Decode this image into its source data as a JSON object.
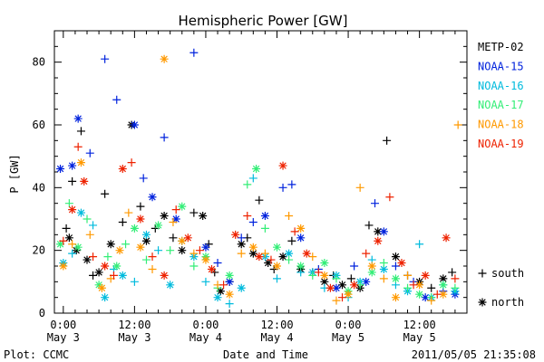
{
  "chart_data": {
    "type": "scatter",
    "title": "Hemispheric Power [GW]",
    "xlabel": "Date and Time",
    "ylabel": "P [GW]",
    "x_unit": "hours from 2011-05-03 00:00 UT",
    "xlim": [
      -1.5,
      68
    ],
    "ylim": [
      0,
      90
    ],
    "x_ticks": [
      {
        "pos": 0,
        "lines": [
          "0:00",
          "May 3"
        ]
      },
      {
        "pos": 12,
        "lines": [
          "12:00",
          "May 3"
        ]
      },
      {
        "pos": 24,
        "lines": [
          "0:00",
          "May 4"
        ]
      },
      {
        "pos": 36,
        "lines": [
          "12:00",
          "May 4"
        ]
      },
      {
        "pos": 48,
        "lines": [
          "0:00",
          "May 5"
        ]
      },
      {
        "pos": 60,
        "lines": [
          "12:00",
          "May 5"
        ]
      }
    ],
    "y_ticks": [
      0,
      20,
      40,
      60,
      80
    ],
    "marker_legend": [
      {
        "symbol": "+",
        "label": "south"
      },
      {
        "symbol": "*",
        "label": "north"
      }
    ],
    "footer_left": "Plot: CCMC",
    "footer_right": "2011/05/05 21:35:08",
    "series": [
      {
        "name": "METP-02",
        "color": "#000000",
        "points": [
          [
            0.5,
            "+",
            27
          ],
          [
            1,
            "*",
            24
          ],
          [
            1.5,
            "+",
            42
          ],
          [
            2.2,
            "*",
            20
          ],
          [
            3,
            "+",
            58
          ],
          [
            4,
            "*",
            17
          ],
          [
            5,
            "+",
            12
          ],
          [
            6,
            "*",
            13
          ],
          [
            7,
            "+",
            38
          ],
          [
            8,
            "*",
            22
          ],
          [
            10,
            "+",
            29
          ],
          [
            11.5,
            "*",
            60
          ],
          [
            13,
            "+",
            34
          ],
          [
            14,
            "*",
            23
          ],
          [
            15.5,
            "+",
            27
          ],
          [
            17,
            "*",
            31
          ],
          [
            18.5,
            "+",
            24
          ],
          [
            20,
            "*",
            20
          ],
          [
            22,
            "+",
            32
          ],
          [
            23.5,
            "*",
            31
          ],
          [
            24.5,
            "+",
            22
          ],
          [
            25.5,
            "+",
            13
          ],
          [
            26.5,
            "*",
            7
          ],
          [
            28,
            "+",
            10
          ],
          [
            30,
            "*",
            22
          ],
          [
            31,
            "+",
            24
          ],
          [
            32,
            "*",
            19
          ],
          [
            33,
            "+",
            36
          ],
          [
            34.5,
            "*",
            16
          ],
          [
            35.5,
            "+",
            14
          ],
          [
            37,
            "*",
            18
          ],
          [
            38.5,
            "+",
            23
          ],
          [
            40,
            "*",
            14
          ],
          [
            42,
            "+",
            13
          ],
          [
            44,
            "*",
            10
          ],
          [
            45.5,
            "+",
            12
          ],
          [
            47,
            "*",
            9
          ],
          [
            48.5,
            "+",
            11
          ],
          [
            50,
            "*",
            8
          ],
          [
            51.5,
            "+",
            28
          ],
          [
            53,
            "*",
            26
          ],
          [
            54.5,
            "+",
            55
          ],
          [
            56,
            "*",
            18
          ],
          [
            58,
            "+",
            12
          ],
          [
            60,
            "*",
            10
          ],
          [
            62,
            "+",
            8
          ],
          [
            64,
            "*",
            11
          ],
          [
            65.5,
            "+",
            13
          ]
        ]
      },
      {
        "name": "NOAA-15",
        "color": "#0022dd",
        "points": [
          [
            -0.5,
            "*",
            46
          ],
          [
            1.5,
            "*",
            47
          ],
          [
            2.5,
            "*",
            62
          ],
          [
            4.5,
            "+",
            51
          ],
          [
            7,
            "+",
            81
          ],
          [
            9,
            "+",
            68
          ],
          [
            12,
            "*",
            60
          ],
          [
            13.5,
            "+",
            43
          ],
          [
            15,
            "*",
            37
          ],
          [
            17,
            "+",
            56
          ],
          [
            19,
            "*",
            30
          ],
          [
            22,
            "+",
            83
          ],
          [
            24,
            "*",
            21
          ],
          [
            26,
            "+",
            16
          ],
          [
            28,
            "*",
            10
          ],
          [
            30,
            "+",
            24
          ],
          [
            32,
            "+",
            29
          ],
          [
            34,
            "*",
            31
          ],
          [
            37,
            "+",
            40
          ],
          [
            38.5,
            "+",
            41
          ],
          [
            40,
            "*",
            24
          ],
          [
            43,
            "+",
            14
          ],
          [
            46,
            "*",
            8
          ],
          [
            49,
            "+",
            15
          ],
          [
            51,
            "*",
            10
          ],
          [
            52.5,
            "+",
            35
          ],
          [
            54,
            "*",
            26
          ],
          [
            56,
            "+",
            15
          ],
          [
            59,
            "+",
            10
          ],
          [
            61,
            "*",
            5
          ],
          [
            64,
            "+",
            7
          ],
          [
            66,
            "*",
            6
          ]
        ]
      },
      {
        "name": "NOAA-16",
        "color": "#00bbdd",
        "points": [
          [
            0,
            "*",
            16
          ],
          [
            1.5,
            "+",
            19
          ],
          [
            3,
            "*",
            32
          ],
          [
            5,
            "+",
            28
          ],
          [
            7,
            "*",
            5
          ],
          [
            8.5,
            "+",
            14
          ],
          [
            10,
            "*",
            12
          ],
          [
            12,
            "+",
            10
          ],
          [
            14,
            "*",
            25
          ],
          [
            16,
            "+",
            20
          ],
          [
            18,
            "*",
            9
          ],
          [
            20,
            "+",
            23
          ],
          [
            22,
            "*",
            18
          ],
          [
            24,
            "+",
            10
          ],
          [
            26,
            "*",
            5
          ],
          [
            28,
            "+",
            3
          ],
          [
            30,
            "*",
            8
          ],
          [
            32,
            "+",
            43
          ],
          [
            34,
            "*",
            18
          ],
          [
            36,
            "+",
            11
          ],
          [
            38,
            "*",
            19
          ],
          [
            40,
            "+",
            13
          ],
          [
            42,
            "*",
            13
          ],
          [
            44,
            "+",
            8
          ],
          [
            46,
            "*",
            12
          ],
          [
            48,
            "+",
            5
          ],
          [
            50,
            "*",
            10
          ],
          [
            52,
            "+",
            17
          ],
          [
            54,
            "*",
            14
          ],
          [
            56,
            "+",
            9
          ],
          [
            58,
            "*",
            7
          ],
          [
            60,
            "+",
            22
          ],
          [
            62,
            "*",
            5
          ],
          [
            64,
            "+",
            9
          ],
          [
            66,
            "*",
            7
          ]
        ]
      },
      {
        "name": "NOAA-17",
        "color": "#33ee77",
        "points": [
          [
            -0.5,
            "*",
            22
          ],
          [
            1,
            "+",
            35
          ],
          [
            2.5,
            "*",
            21
          ],
          [
            4,
            "+",
            30
          ],
          [
            6,
            "*",
            9
          ],
          [
            7.5,
            "+",
            18
          ],
          [
            9,
            "*",
            15
          ],
          [
            10.5,
            "+",
            22
          ],
          [
            12,
            "*",
            27
          ],
          [
            14,
            "+",
            17
          ],
          [
            16,
            "*",
            28
          ],
          [
            18,
            "+",
            20
          ],
          [
            20,
            "*",
            34
          ],
          [
            22,
            "+",
            15
          ],
          [
            24,
            "*",
            18
          ],
          [
            26,
            "+",
            8
          ],
          [
            28,
            "*",
            12
          ],
          [
            31,
            "+",
            41
          ],
          [
            32.5,
            "*",
            46
          ],
          [
            34,
            "+",
            27
          ],
          [
            36,
            "*",
            21
          ],
          [
            38,
            "+",
            17
          ],
          [
            40,
            "*",
            15
          ],
          [
            42,
            "+",
            12
          ],
          [
            44,
            "*",
            16
          ],
          [
            46,
            "+",
            11
          ],
          [
            48,
            "*",
            7
          ],
          [
            50,
            "+",
            9
          ],
          [
            52,
            "*",
            13
          ],
          [
            54,
            "+",
            16
          ],
          [
            56,
            "*",
            11
          ],
          [
            58,
            "+",
            8
          ],
          [
            60,
            "*",
            6
          ],
          [
            62,
            "+",
            5
          ],
          [
            64,
            "*",
            9
          ],
          [
            66,
            "+",
            8
          ]
        ]
      },
      {
        "name": "NOAA-18",
        "color": "#ff9900",
        "points": [
          [
            0,
            "*",
            15
          ],
          [
            1.5,
            "+",
            22
          ],
          [
            3,
            "*",
            48
          ],
          [
            4.5,
            "+",
            25
          ],
          [
            6.5,
            "*",
            8
          ],
          [
            8,
            "+",
            11
          ],
          [
            9.5,
            "*",
            20
          ],
          [
            11,
            "+",
            32
          ],
          [
            13,
            "*",
            21
          ],
          [
            15,
            "+",
            14
          ],
          [
            17,
            "*",
            81
          ],
          [
            18.5,
            "+",
            29
          ],
          [
            20,
            "*",
            23
          ],
          [
            22,
            "+",
            19
          ],
          [
            24,
            "*",
            17
          ],
          [
            26,
            "+",
            9
          ],
          [
            28,
            "*",
            6
          ],
          [
            30,
            "+",
            19
          ],
          [
            32,
            "*",
            21
          ],
          [
            34,
            "+",
            19
          ],
          [
            36,
            "*",
            15
          ],
          [
            38,
            "+",
            31
          ],
          [
            40,
            "*",
            27
          ],
          [
            42,
            "+",
            18
          ],
          [
            44,
            "*",
            12
          ],
          [
            46,
            "+",
            4
          ],
          [
            48,
            "*",
            6
          ],
          [
            50,
            "+",
            40
          ],
          [
            52,
            "*",
            15
          ],
          [
            54,
            "+",
            11
          ],
          [
            56,
            "*",
            5
          ],
          [
            58,
            "+",
            12
          ],
          [
            60,
            "*",
            9
          ],
          [
            62,
            "+",
            4
          ],
          [
            64,
            "*",
            6
          ],
          [
            66.5,
            "+",
            60
          ]
        ]
      },
      {
        "name": "NOAA-19",
        "color": "#ee2200",
        "points": [
          [
            0,
            "+",
            23
          ],
          [
            1.5,
            "*",
            33
          ],
          [
            2.5,
            "+",
            53
          ],
          [
            3.5,
            "*",
            42
          ],
          [
            5,
            "+",
            18
          ],
          [
            7,
            "*",
            15
          ],
          [
            8.5,
            "+",
            12
          ],
          [
            10,
            "*",
            46
          ],
          [
            11.5,
            "+",
            48
          ],
          [
            13,
            "*",
            30
          ],
          [
            15,
            "+",
            18
          ],
          [
            17,
            "*",
            12
          ],
          [
            19,
            "+",
            33
          ],
          [
            21,
            "*",
            24
          ],
          [
            23,
            "+",
            20
          ],
          [
            25,
            "*",
            14
          ],
          [
            27,
            "+",
            9
          ],
          [
            29,
            "*",
            25
          ],
          [
            31,
            "+",
            31
          ],
          [
            33,
            "*",
            18
          ],
          [
            35,
            "+",
            17
          ],
          [
            37,
            "*",
            47
          ],
          [
            39,
            "+",
            26
          ],
          [
            41,
            "*",
            19
          ],
          [
            43,
            "+",
            13
          ],
          [
            45,
            "*",
            8
          ],
          [
            47,
            "+",
            5
          ],
          [
            49,
            "*",
            9
          ],
          [
            51,
            "+",
            19
          ],
          [
            53,
            "*",
            23
          ],
          [
            55,
            "+",
            37
          ],
          [
            57,
            "*",
            16
          ],
          [
            59,
            "+",
            9
          ],
          [
            61,
            "*",
            12
          ],
          [
            63,
            "+",
            6
          ],
          [
            64.5,
            "*",
            24
          ],
          [
            66,
            "+",
            11
          ]
        ]
      }
    ]
  }
}
